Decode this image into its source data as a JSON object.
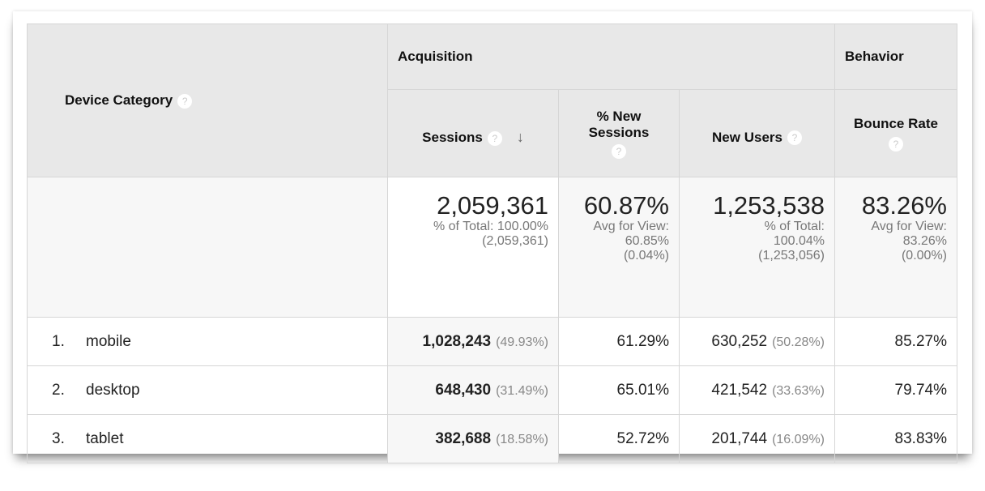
{
  "header": {
    "dimension": "Device Category",
    "groups": {
      "acquisition": "Acquisition",
      "behavior": "Behavior"
    },
    "columns": {
      "sessions": "Sessions",
      "pct_new_sessions": "% New Sessions",
      "new_users": "New Users",
      "bounce_rate": "Bounce Rate"
    },
    "help_icon": "?",
    "sort_icon": "↓"
  },
  "totals": {
    "sessions": {
      "value": "2,059,361",
      "line1": "% of Total: 100.00%",
      "line2": "(2,059,361)"
    },
    "pct_new_sessions": {
      "value": "60.87%",
      "line1": "Avg for View:",
      "line2": "60.85%",
      "line3": "(0.04%)"
    },
    "new_users": {
      "value": "1,253,538",
      "line1": "% of Total:",
      "line2": "100.04%",
      "line3": "(1,253,056)"
    },
    "bounce_rate": {
      "value": "83.26%",
      "line1": "Avg for View:",
      "line2": "83.26%",
      "line3": "(0.00%)"
    }
  },
  "rows": [
    {
      "index": "1.",
      "device": "mobile",
      "sessions": "1,028,243",
      "sessions_pct": "(49.93%)",
      "pct_new_sessions": "61.29%",
      "new_users": "630,252",
      "new_users_pct": "(50.28%)",
      "bounce_rate": "85.27%"
    },
    {
      "index": "2.",
      "device": "desktop",
      "sessions": "648,430",
      "sessions_pct": "(31.49%)",
      "pct_new_sessions": "65.01%",
      "new_users": "421,542",
      "new_users_pct": "(33.63%)",
      "bounce_rate": "79.74%"
    },
    {
      "index": "3.",
      "device": "tablet",
      "sessions": "382,688",
      "sessions_pct": "(18.58%)",
      "pct_new_sessions": "52.72%",
      "new_users": "201,744",
      "new_users_pct": "(16.09%)",
      "bounce_rate": "83.83%"
    }
  ]
}
